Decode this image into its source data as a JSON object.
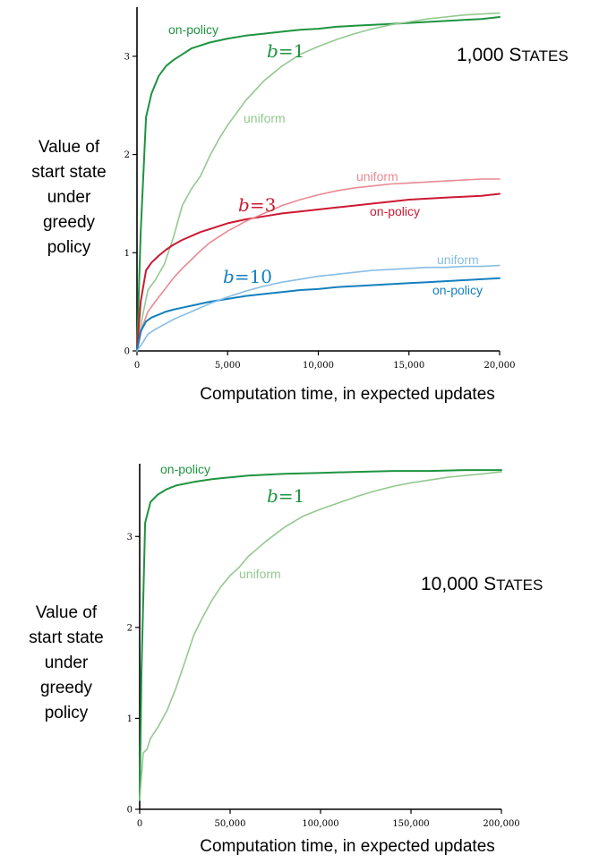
{
  "colors": {
    "b1_on": "#1e9440",
    "b1_uni": "#94c890",
    "b3_on": "#cc1a33",
    "b3_uni": "#e88a93",
    "b10_on": "#1480be",
    "b10_uni": "#86bde4",
    "axis": "#000000"
  },
  "chart_data": [
    {
      "type": "line",
      "panel_label": "1,000 States",
      "panel_label_big": "1,000 S",
      "panel_label_small": "TATES",
      "ylabel_lines": [
        "Value of",
        "start state",
        "under",
        "greedy",
        "policy"
      ],
      "xlabel": "Computation time, in expected updates",
      "xlim": [
        0,
        20000
      ],
      "ylim": [
        0,
        3.5
      ],
      "xticks": [
        0,
        5000,
        10000,
        15000,
        20000
      ],
      "xtick_labels": [
        "0",
        "5,000",
        "10,000",
        "15,000",
        "20,000"
      ],
      "yticks": [
        0,
        1,
        2,
        3
      ],
      "ytick_labels": [
        "0",
        "1",
        "2",
        "3"
      ],
      "groups": [
        {
          "b_label": "b=1",
          "b_prefix": "b",
          "b_suffix": "=1",
          "color_key": "b1_on"
        },
        {
          "b_label": "b=3",
          "b_prefix": "b",
          "b_suffix": "=3",
          "color_key": "b3_on"
        },
        {
          "b_label": "b=10",
          "b_prefix": "b",
          "b_suffix": "=10",
          "color_key": "b10_on"
        }
      ],
      "series": [
        {
          "name": "on-policy",
          "b": 1,
          "color_key": "b1_on",
          "x": [
            0,
            200,
            500,
            800,
            1200,
            1600,
            2000,
            2500,
            3000,
            3500,
            4000,
            5000,
            6000,
            7000,
            8000,
            9000,
            10000,
            11000,
            12000,
            13000,
            14000,
            15000,
            16000,
            17000,
            18000,
            19000,
            20000
          ],
          "y": [
            0.0,
            1.2,
            2.38,
            2.62,
            2.8,
            2.9,
            2.96,
            3.02,
            3.08,
            3.11,
            3.14,
            3.18,
            3.21,
            3.23,
            3.25,
            3.27,
            3.28,
            3.3,
            3.31,
            3.32,
            3.33,
            3.34,
            3.35,
            3.36,
            3.37,
            3.38,
            3.4
          ]
        },
        {
          "name": "uniform",
          "b": 1,
          "color_key": "b1_uni",
          "x": [
            0,
            300,
            600,
            1000,
            1500,
            2000,
            2500,
            3000,
            3500,
            4000,
            4500,
            5000,
            6000,
            7000,
            8000,
            9000,
            10000,
            11000,
            12000,
            13000,
            14000,
            15000,
            16000,
            17000,
            18000,
            19000,
            20000
          ],
          "y": [
            0.0,
            0.35,
            0.62,
            0.72,
            0.88,
            1.15,
            1.48,
            1.65,
            1.78,
            1.98,
            2.15,
            2.3,
            2.55,
            2.75,
            2.9,
            3.02,
            3.1,
            3.17,
            3.23,
            3.28,
            3.32,
            3.35,
            3.38,
            3.4,
            3.42,
            3.43,
            3.44
          ]
        },
        {
          "name": "on-policy",
          "b": 3,
          "color_key": "b3_on",
          "x": [
            0,
            200,
            500,
            800,
            1200,
            1600,
            2000,
            2500,
            3000,
            3500,
            4000,
            5000,
            6000,
            7000,
            8000,
            9000,
            10000,
            11000,
            12000,
            13000,
            14000,
            15000,
            16000,
            17000,
            18000,
            19000,
            20000
          ],
          "y": [
            0.0,
            0.5,
            0.82,
            0.9,
            0.97,
            1.03,
            1.08,
            1.13,
            1.17,
            1.21,
            1.24,
            1.3,
            1.34,
            1.37,
            1.4,
            1.42,
            1.44,
            1.46,
            1.48,
            1.5,
            1.52,
            1.54,
            1.55,
            1.56,
            1.57,
            1.58,
            1.6
          ]
        },
        {
          "name": "uniform",
          "b": 3,
          "color_key": "b3_uni",
          "x": [
            0,
            300,
            600,
            1000,
            1500,
            2000,
            2500,
            3000,
            3500,
            4000,
            5000,
            6000,
            7000,
            8000,
            9000,
            10000,
            11000,
            12000,
            13000,
            14000,
            15000,
            16000,
            17000,
            18000,
            19000,
            20000
          ],
          "y": [
            0.0,
            0.25,
            0.4,
            0.5,
            0.62,
            0.74,
            0.84,
            0.93,
            1.02,
            1.1,
            1.22,
            1.32,
            1.4,
            1.48,
            1.54,
            1.59,
            1.63,
            1.66,
            1.68,
            1.7,
            1.71,
            1.72,
            1.73,
            1.74,
            1.75,
            1.75
          ]
        },
        {
          "name": "on-policy",
          "b": 10,
          "color_key": "b10_on",
          "x": [
            0,
            200,
            500,
            800,
            1200,
            1600,
            2000,
            2500,
            3000,
            4000,
            5000,
            6000,
            7000,
            8000,
            9000,
            10000,
            11000,
            12000,
            13000,
            14000,
            15000,
            16000,
            17000,
            18000,
            19000,
            20000
          ],
          "y": [
            0.0,
            0.2,
            0.3,
            0.34,
            0.37,
            0.4,
            0.42,
            0.44,
            0.46,
            0.5,
            0.53,
            0.56,
            0.58,
            0.6,
            0.62,
            0.63,
            0.65,
            0.66,
            0.67,
            0.68,
            0.69,
            0.7,
            0.71,
            0.72,
            0.73,
            0.74
          ]
        },
        {
          "name": "uniform",
          "b": 10,
          "color_key": "b10_uni",
          "x": [
            0,
            300,
            600,
            1000,
            1500,
            2000,
            2500,
            3000,
            4000,
            5000,
            6000,
            7000,
            8000,
            9000,
            10000,
            11000,
            12000,
            13000,
            14000,
            15000,
            16000,
            17000,
            18000,
            19000,
            20000
          ],
          "y": [
            0.0,
            0.08,
            0.17,
            0.22,
            0.27,
            0.32,
            0.36,
            0.4,
            0.48,
            0.55,
            0.61,
            0.66,
            0.7,
            0.73,
            0.76,
            0.78,
            0.8,
            0.82,
            0.83,
            0.84,
            0.85,
            0.85,
            0.86,
            0.86,
            0.87
          ]
        }
      ]
    },
    {
      "type": "line",
      "panel_label": "10,000 States",
      "panel_label_big": "10,000 S",
      "panel_label_small": "TATES",
      "ylabel_lines": [
        "Value of",
        "start state",
        "under",
        "greedy",
        "policy"
      ],
      "xlabel": "Computation time, in expected updates",
      "xlim": [
        0,
        200000
      ],
      "ylim": [
        0,
        3.8
      ],
      "xticks": [
        0,
        50000,
        100000,
        150000,
        200000
      ],
      "xtick_labels": [
        "0",
        "50,000",
        "100,000",
        "150,000",
        "200,000"
      ],
      "yticks": [
        0,
        1,
        2,
        3
      ],
      "ytick_labels": [
        "0",
        "1",
        "2",
        "3"
      ],
      "groups": [
        {
          "b_label": "b=1",
          "b_prefix": "b",
          "b_suffix": "=1",
          "color_key": "b1_on"
        }
      ],
      "series": [
        {
          "name": "on-policy",
          "b": 1,
          "color_key": "b1_on",
          "x": [
            0,
            1000,
            3000,
            6000,
            10000,
            15000,
            20000,
            30000,
            40000,
            50000,
            60000,
            80000,
            100000,
            120000,
            140000,
            160000,
            180000,
            200000
          ],
          "y": [
            0.1,
            1.5,
            3.15,
            3.38,
            3.46,
            3.52,
            3.56,
            3.6,
            3.63,
            3.65,
            3.67,
            3.69,
            3.7,
            3.71,
            3.72,
            3.72,
            3.73,
            3.73
          ]
        },
        {
          "name": "uniform",
          "b": 1,
          "color_key": "b1_uni",
          "x": [
            0,
            2000,
            4000,
            6000,
            10000,
            15000,
            20000,
            25000,
            30000,
            35000,
            40000,
            45000,
            50000,
            55000,
            60000,
            70000,
            80000,
            90000,
            100000,
            110000,
            120000,
            130000,
            140000,
            150000,
            160000,
            170000,
            180000,
            190000,
            200000
          ],
          "y": [
            0.1,
            0.62,
            0.66,
            0.78,
            0.9,
            1.08,
            1.33,
            1.62,
            1.92,
            2.12,
            2.3,
            2.45,
            2.57,
            2.66,
            2.78,
            2.95,
            3.1,
            3.22,
            3.3,
            3.37,
            3.44,
            3.5,
            3.55,
            3.59,
            3.62,
            3.65,
            3.67,
            3.69,
            3.71
          ]
        }
      ]
    }
  ]
}
